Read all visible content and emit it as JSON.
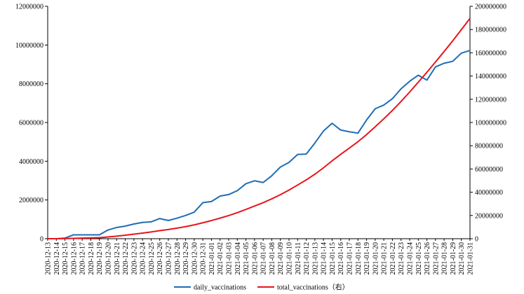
{
  "chart_data": {
    "type": "line",
    "x": [
      "2020-12-13",
      "2020-12-14",
      "2020-12-15",
      "2020-12-16",
      "2020-12-17",
      "2020-12-18",
      "2020-12-19",
      "2020-12-20",
      "2020-12-21",
      "2020-12-22",
      "2020-12-23",
      "2020-12-24",
      "2020-12-25",
      "2020-12-26",
      "2020-12-27",
      "2020-12-28",
      "2020-12-29",
      "2020-12-30",
      "2020-12-31",
      "2021-01-01",
      "2021-01-02",
      "2021-01-03",
      "2021-01-04",
      "2021-01-05",
      "2021-01-06",
      "2021-01-07",
      "2021-01-08",
      "2021-01-09",
      "2021-01-10",
      "2021-01-11",
      "2021-01-12",
      "2021-01-13",
      "2021-01-14",
      "2021-01-15",
      "2021-01-16",
      "2021-01-17",
      "2021-01-18",
      "2021-01-19",
      "2021-01-20",
      "2021-01-21",
      "2021-01-22",
      "2021-01-23",
      "2021-01-24",
      "2021-01-25",
      "2021-01-26",
      "2021-01-27",
      "2021-01-28",
      "2021-01-29",
      "2021-01-30",
      "2021-01-31"
    ],
    "series": [
      {
        "name": "daily_vaccinations",
        "axis": "left",
        "color": "#1f6db5",
        "values": [
          0,
          0,
          30000,
          200000,
          200000,
          200000,
          200000,
          450000,
          580000,
          650000,
          760000,
          840000,
          870000,
          1040000,
          940000,
          1060000,
          1200000,
          1370000,
          1860000,
          1920000,
          2200000,
          2280000,
          2480000,
          2840000,
          2990000,
          2900000,
          3250000,
          3700000,
          3940000,
          4350000,
          4370000,
          4940000,
          5560000,
          5960000,
          5610000,
          5520000,
          5450000,
          6130000,
          6710000,
          6900000,
          7230000,
          7740000,
          8130000,
          8440000,
          8190000,
          8870000,
          9060000,
          9160000,
          9580000,
          9720000
        ]
      },
      {
        "name": "total_vaccinations（右）",
        "axis": "right",
        "color": "#e8141c",
        "values": [
          0,
          0,
          50000,
          300000,
          500000,
          700000,
          900000,
          1500000,
          2200000,
          3000000,
          3900000,
          4800000,
          5800000,
          6900000,
          7900000,
          9100000,
          10400000,
          11900000,
          13700000,
          15600000,
          17700000,
          19900000,
          22400000,
          25200000,
          28100000,
          31000000,
          34300000,
          37900000,
          41900000,
          46200000,
          50600000,
          55500000,
          61000000,
          67000000,
          72600000,
          78000000,
          83500000,
          89600000,
          96300000,
          103200000,
          110400000,
          118100000,
          126200000,
          134700000,
          143200000,
          152100000,
          161100000,
          170300000,
          179900000,
          189600000
        ]
      }
    ],
    "y_left": {
      "min": 0,
      "max": 12000000,
      "ticks": [
        "0",
        "2000000",
        "4000000",
        "6000000",
        "8000000",
        "10000000",
        "12000000"
      ]
    },
    "y_right": {
      "min": 0,
      "max": 200000000,
      "ticks": [
        "0",
        "20000000",
        "40000000",
        "60000000",
        "80000000",
        "100000000",
        "120000000",
        "140000000",
        "160000000",
        "180000000",
        "200000000"
      ]
    },
    "grid": false,
    "legend_position": "bottom"
  }
}
